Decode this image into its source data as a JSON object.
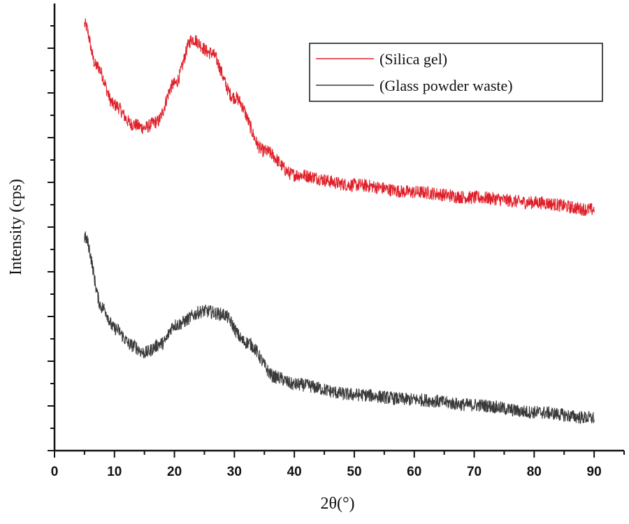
{
  "chart_data": {
    "type": "line",
    "title": "",
    "xlabel": "2θ(°)",
    "ylabel": "Intensity (cps)",
    "xlim": [
      0,
      95
    ],
    "ylim": [
      0,
      10
    ],
    "x_ticks": [
      "0",
      "10",
      "20",
      "30",
      "40",
      "50",
      "60",
      "70",
      "80",
      "90"
    ],
    "y_tick_labels_shown": false,
    "grid": false,
    "legend_position": "top-right",
    "series": [
      {
        "name": "(Silica gel)",
        "color": "#e0202a",
        "x": [
          5,
          7,
          10,
          13,
          15,
          17,
          20,
          23,
          26,
          30,
          35,
          40,
          50,
          60,
          70,
          80,
          90
        ],
        "y": [
          9.53,
          8.6,
          7.73,
          7.3,
          7.22,
          7.35,
          8.2,
          9.2,
          8.9,
          7.9,
          6.7,
          6.17,
          5.94,
          5.78,
          5.66,
          5.55,
          5.39
        ]
      },
      {
        "name": "(Glass powder waste)",
        "color": "#3a3a3a",
        "x": [
          5,
          8,
          10,
          13,
          15,
          18,
          20,
          25,
          28,
          32,
          37,
          40,
          50,
          60,
          70,
          80,
          90
        ],
        "y": [
          4.77,
          3.2,
          2.73,
          2.35,
          2.19,
          2.4,
          2.81,
          3.12,
          3.05,
          2.42,
          1.64,
          1.48,
          1.25,
          1.14,
          1.02,
          0.86,
          0.73
        ]
      }
    ]
  }
}
